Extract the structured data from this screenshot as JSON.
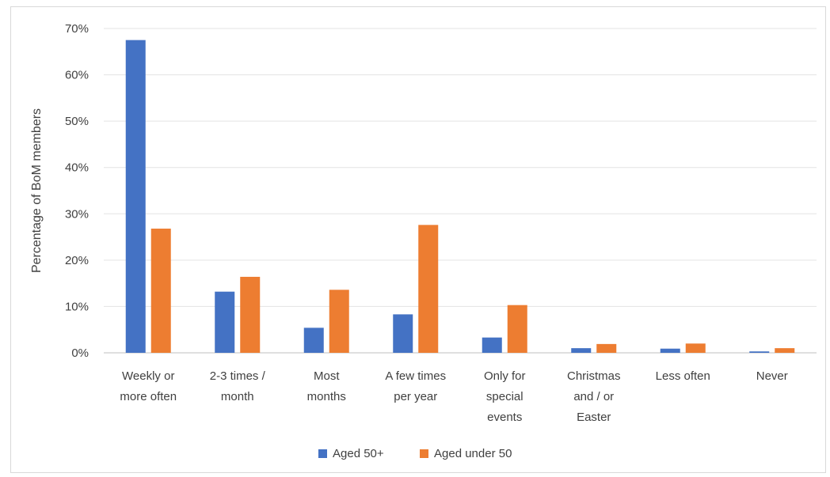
{
  "chart_data": {
    "type": "bar",
    "ylabel": "Percentage of BoM members",
    "ylim": [
      0,
      70
    ],
    "yticks": [
      "0%",
      "10%",
      "20%",
      "30%",
      "40%",
      "50%",
      "60%",
      "70%"
    ],
    "grid": true,
    "legend_position": "bottom",
    "categories": [
      [
        "Weekly or",
        "more often"
      ],
      [
        "2-3 times /",
        "month"
      ],
      [
        "Most",
        "months"
      ],
      [
        "A few times",
        "per year"
      ],
      [
        "Only for",
        "special",
        "events"
      ],
      [
        "Christmas",
        "and / or",
        "Easter"
      ],
      [
        "Less often"
      ],
      [
        "Never"
      ]
    ],
    "series": [
      {
        "name": "Aged 50+",
        "color": "#4472C4",
        "values": [
          67.5,
          13.2,
          5.4,
          8.3,
          3.3,
          1.0,
          0.9,
          0.3
        ]
      },
      {
        "name": "Aged under 50",
        "color": "#ED7D31",
        "values": [
          26.8,
          16.4,
          13.6,
          27.6,
          10.3,
          1.9,
          2.0,
          1.0
        ]
      }
    ]
  }
}
